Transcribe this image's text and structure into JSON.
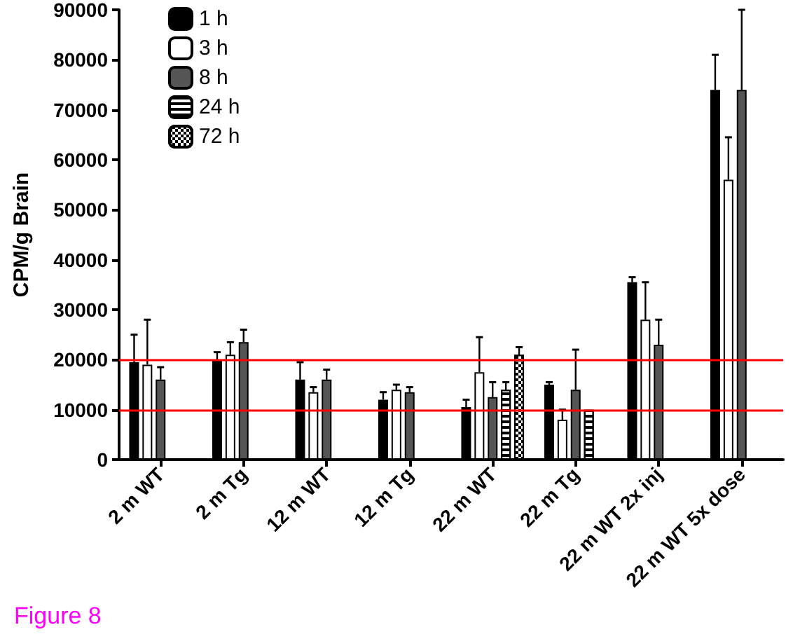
{
  "chart_data": {
    "type": "bar",
    "ylabel": "CPM/g Brain",
    "categories": [
      "2 m WT",
      "2 m Tg",
      "12 m WT",
      "12 m Tg",
      "22 m WT",
      "22 m Tg",
      "22 m WT 2x inj",
      "22 m WT 5x dose"
    ],
    "series": [
      {
        "name": "1 h",
        "color": "#000000",
        "values": [
          19500,
          20000,
          16000,
          12000,
          10500,
          15000,
          35500,
          74000
        ],
        "errors": [
          [
            19500,
            25000
          ],
          [
            20000,
            21500
          ],
          [
            16000,
            19500
          ],
          [
            12000,
            13500
          ],
          [
            10500,
            12000
          ],
          [
            15000,
            15500
          ],
          [
            35500,
            36500
          ],
          [
            74000,
            81000
          ]
        ]
      },
      {
        "name": "3 h",
        "color": "#ffffff",
        "values": [
          19000,
          21000,
          13500,
          14000,
          17500,
          8000,
          28000,
          56000
        ],
        "errors": [
          [
            19000,
            28000
          ],
          [
            21000,
            23500
          ],
          [
            13500,
            14500
          ],
          [
            14000,
            15000
          ],
          [
            17500,
            24500
          ],
          [
            8000,
            10000
          ],
          [
            28000,
            35500
          ],
          [
            56000,
            64500
          ]
        ]
      },
      {
        "name": "8 h",
        "color": "#555555",
        "values": [
          16000,
          23500,
          16000,
          13500,
          12500,
          14000,
          23000,
          74000
        ],
        "errors": [
          [
            16000,
            18500
          ],
          [
            23500,
            26000
          ],
          [
            16000,
            18000
          ],
          [
            13500,
            14500
          ],
          [
            12500,
            15500
          ],
          [
            14000,
            22000
          ],
          [
            23000,
            28000
          ],
          [
            74000,
            90000
          ]
        ]
      },
      {
        "name": "24 h",
        "color": "#ffffff",
        "values": [
          null,
          null,
          null,
          null,
          14000,
          10000,
          null,
          null
        ],
        "errors": [
          null,
          null,
          null,
          null,
          [
            14000,
            15500
          ],
          null,
          null,
          null
        ]
      },
      {
        "name": "72 h",
        "color": "#ffffff",
        "values": [
          null,
          null,
          null,
          null,
          21000,
          null,
          null,
          null
        ],
        "errors": [
          null,
          null,
          null,
          null,
          [
            21000,
            22500
          ],
          null,
          null,
          null
        ]
      }
    ],
    "ylim": [
      0,
      90000
    ],
    "yticks": [
      0,
      10000,
      20000,
      30000,
      40000,
      50000,
      60000,
      70000,
      80000,
      90000
    ],
    "grid": false,
    "legend": "top left",
    "ref_lines": [
      {
        "axis": "y",
        "value": 10000,
        "color": "#ff0000"
      },
      {
        "axis": "y",
        "value": 20000,
        "color": "#ff0000"
      }
    ],
    "annotations": [
      "Figure 8"
    ]
  }
}
